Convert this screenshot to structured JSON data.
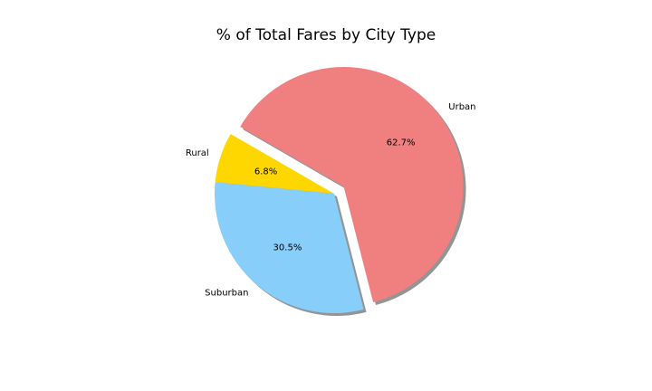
{
  "chart_data": {
    "type": "pie",
    "title": "% of Total Fares by City Type",
    "slices": [
      {
        "label": "Rural",
        "value": 6.8,
        "pct_label": "6.8%",
        "color": "#ffd700",
        "explode": false
      },
      {
        "label": "Suburban",
        "value": 30.5,
        "pct_label": "30.5%",
        "color": "#87cefa",
        "explode": false
      },
      {
        "label": "Urban",
        "value": 62.7,
        "pct_label": "62.7%",
        "color": "#f08080",
        "explode": true
      }
    ],
    "shadow": true,
    "legend": false
  }
}
